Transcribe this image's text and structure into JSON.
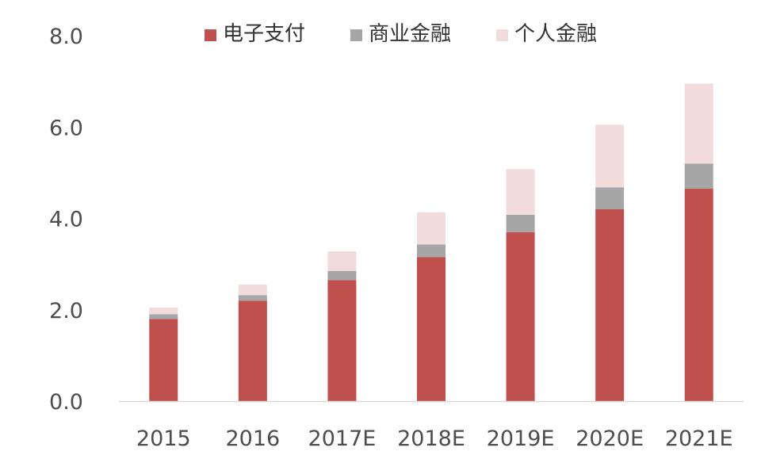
{
  "chart_data": {
    "type": "bar",
    "stacked": true,
    "title": "",
    "xlabel": "",
    "ylabel": "",
    "categories": [
      "2015",
      "2016",
      "2017E",
      "2018E",
      "2019E",
      "2020E",
      "2021E"
    ],
    "series": [
      {
        "name": "电子支付",
        "color": "#c0504d",
        "values": [
          1.8,
          2.2,
          2.65,
          3.15,
          3.7,
          4.2,
          4.65
        ]
      },
      {
        "name": "商业金融",
        "color": "#a6a6a6",
        "values": [
          0.1,
          0.12,
          0.2,
          0.28,
          0.38,
          0.48,
          0.55
        ]
      },
      {
        "name": "个人金融",
        "color": "#f2dcdb",
        "values": [
          0.15,
          0.23,
          0.43,
          0.7,
          1.0,
          1.37,
          1.75
        ]
      }
    ],
    "ylim": [
      0,
      8
    ],
    "yticks": [
      "0.0",
      "2.0",
      "4.0",
      "6.0",
      "8.0"
    ],
    "legend_position": "top",
    "grid": false
  }
}
